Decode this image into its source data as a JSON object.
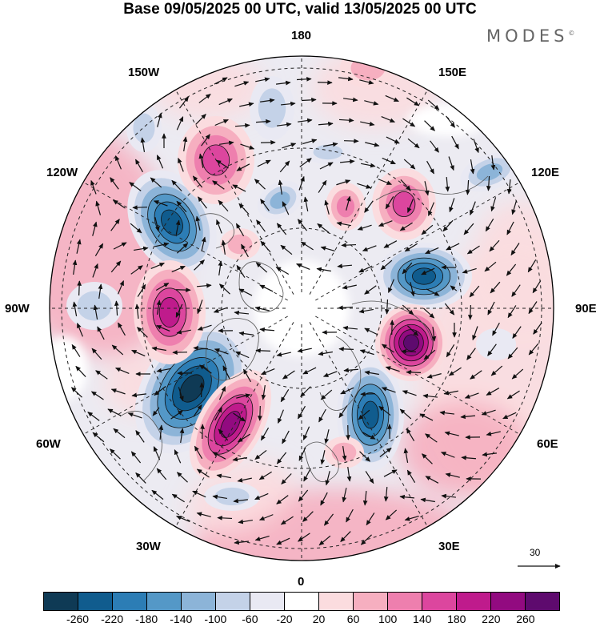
{
  "title": "Base 09/05/2025 00 UTC, valid 13/05/2025 00 UTC",
  "brand": "MODES",
  "brand_mark": "©",
  "map_labels": {
    "top": "180",
    "bottom": "0",
    "left": "90W",
    "right": "90E",
    "nw1": "150W",
    "nw2": "120W",
    "ne1": "150E",
    "ne2": "120E",
    "sw1": "60W",
    "sw2": "30W",
    "se1": "60E",
    "se2": "30E"
  },
  "vector_scale": {
    "label": "30"
  },
  "colorbar": {
    "ticks": [
      "-260",
      "-220",
      "-180",
      "-140",
      "-100",
      "-60",
      "-20",
      "20",
      "60",
      "100",
      "140",
      "180",
      "220",
      "260"
    ],
    "colors": [
      "#0f3a55",
      "#105c8e",
      "#2c7db5",
      "#5498c7",
      "#8cb4d8",
      "#c4d2e8",
      "#e9e9f3",
      "#ffffff",
      "#fbdcdf",
      "#f6afc0",
      "#ee7fae",
      "#dc469e",
      "#bf1b8c",
      "#920a80",
      "#5e0a6e"
    ]
  }
}
